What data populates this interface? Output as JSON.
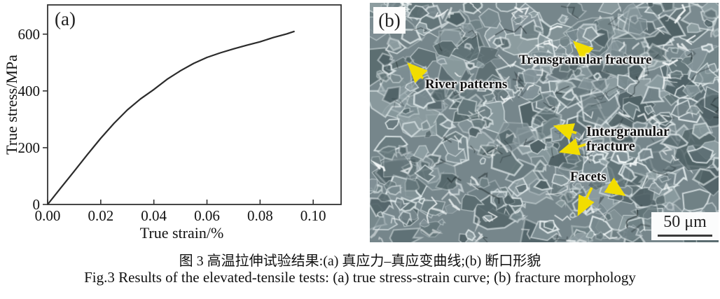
{
  "figure": {
    "panel_a": {
      "label": "(a)"
    },
    "panel_b": {
      "label": "(b)",
      "scale_bar_text": "50 μm",
      "arrow_color": "#f2dd00",
      "base_color": "#76868b",
      "annotations": [
        {
          "id": "transgranular",
          "text": "Transgranular fracture"
        },
        {
          "id": "river",
          "text": "River patterns"
        },
        {
          "id": "intergranular",
          "text": "Intergranular fracture"
        },
        {
          "id": "facets",
          "text": "Facets"
        }
      ],
      "arrows": [
        {
          "id": "transgranular-arrow",
          "tail": [
            310,
            73
          ],
          "head": [
            294,
            58
          ]
        },
        {
          "id": "river-arrow",
          "tail": [
            76,
            108
          ],
          "head": [
            57,
            89
          ]
        },
        {
          "id": "intergranular-arrow-1",
          "tail": [
            295,
            186
          ],
          "head": [
            267,
            177
          ]
        },
        {
          "id": "intergranular-arrow-2",
          "tail": [
            313,
            201
          ],
          "head": [
            275,
            212
          ]
        },
        {
          "id": "facets-arrow-1",
          "tail": [
            317,
            264
          ],
          "head": [
            299,
            300
          ]
        },
        {
          "id": "facets-arrow-2",
          "tail": [
            341,
            260
          ],
          "head": [
            361,
            273
          ]
        }
      ]
    }
  },
  "chart_data": {
    "type": "line",
    "title": "",
    "xlabel": "True strain/%",
    "ylabel": "True stress/MPa",
    "xlim": [
      0,
      0.1105
    ],
    "ylim": [
      0,
      703
    ],
    "xticks": [
      0.0,
      0.02,
      0.04,
      0.06,
      0.08,
      0.1
    ],
    "yticks": [
      0,
      200,
      400,
      600
    ],
    "grid": false,
    "legend": "none",
    "line_color": "#2b2b2b",
    "axis_color": "#333333",
    "series": [
      {
        "name": "true stress-strain curve",
        "x": [
          0,
          0.005,
          0.01,
          0.015,
          0.02,
          0.025,
          0.03,
          0.035,
          0.04,
          0.045,
          0.05,
          0.055,
          0.06,
          0.065,
          0.07,
          0.075,
          0.08,
          0.085,
          0.09,
          0.093
        ],
        "y": [
          0,
          59,
          117,
          176,
          233,
          286,
          333,
          372,
          405,
          441,
          471,
          497,
          518,
          534,
          548,
          561,
          573,
          588,
          601,
          610
        ]
      }
    ]
  },
  "caption": {
    "zh": "图 3  高温拉伸试验结果:(a) 真应力–真应变曲线;(b) 断口形貌",
    "en": "Fig.3  Results of the elevated-tensile tests: (a) true stress-strain curve; (b) fracture morphology"
  }
}
